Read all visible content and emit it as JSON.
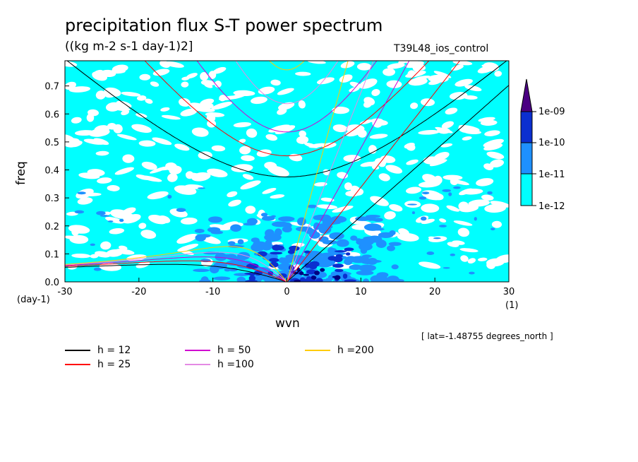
{
  "title": "precipitation flux S-T power spectrum",
  "units": "((kg m-2 s-1 day-1)2]",
  "run_id": "T39L48_ios_control",
  "lat_note": "[ lat=-1.48755 degrees_north ]",
  "colors": {
    "background_field": "#00ffff",
    "blank": "#ffffff",
    "level_1e11": "#1e90ff",
    "level_1e10": "#0b2fd0",
    "level_1e09": "#000080",
    "overflow": "#4b0082"
  },
  "chart_data": {
    "type": "heatmap",
    "title": "precipitation flux S-T power spectrum",
    "xlabel": "wvn",
    "ylabel": "freq",
    "x_unit": "(1)",
    "y_unit": "(day-1)",
    "xlim": [
      -30,
      30
    ],
    "ylim": [
      0,
      0.79
    ],
    "xticks": [
      -30,
      -20,
      -10,
      0,
      10,
      20,
      30
    ],
    "xtick_labels": [
      "-30",
      "-20",
      "-10",
      "0",
      "10",
      "20",
      "30"
    ],
    "yticks": [
      0.0,
      0.1,
      0.2,
      0.3,
      0.4,
      0.5,
      0.6,
      0.7
    ],
    "ytick_labels": [
      "0.0",
      "0.1",
      "0.2",
      "0.3",
      "0.4",
      "0.5",
      "0.6",
      "0.7"
    ],
    "colorbar": {
      "levels": [
        "1e-12",
        "1e-11",
        "1e-10",
        "1e-09"
      ],
      "orientation": "vertical",
      "placement": "right"
    },
    "dispersion_curves": [
      {
        "label": "h = 12",
        "h": 12,
        "color": "#000000"
      },
      {
        "label": "h = 25",
        "h": 25,
        "color": "#ff0000"
      },
      {
        "label": "h = 50",
        "h": 50,
        "color": "#d000d0"
      },
      {
        "label": "h =100",
        "h": 100,
        "color": "#e48ae4"
      },
      {
        "label": "h =200",
        "h": 200,
        "color": "#ffcc00"
      }
    ]
  }
}
